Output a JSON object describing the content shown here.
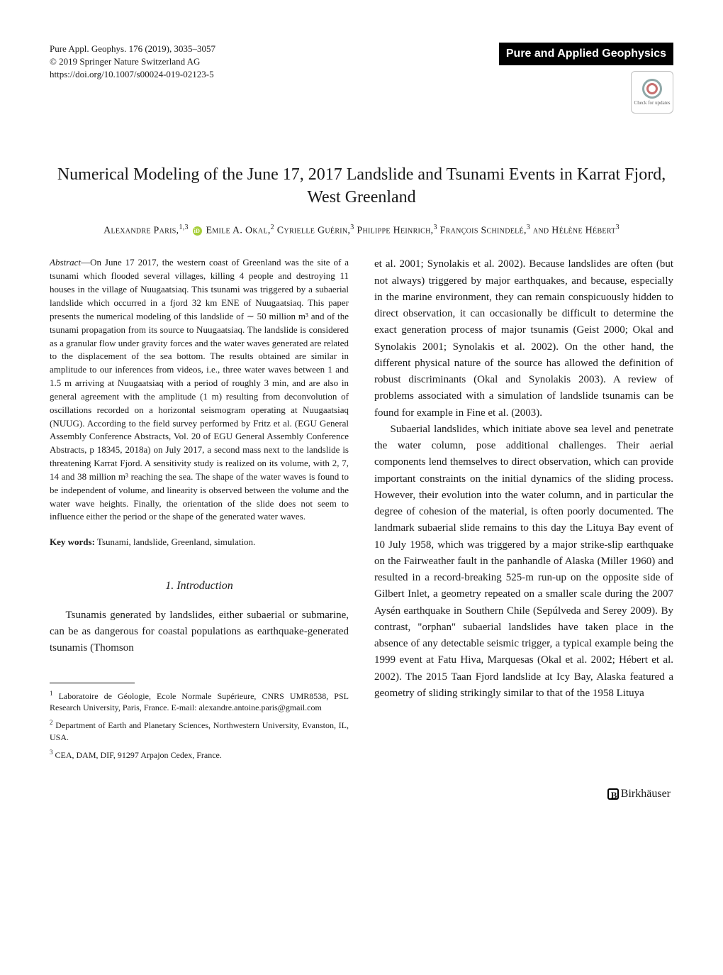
{
  "header": {
    "journal_ref": "Pure Appl. Geophys. 176 (2019), 3035–3057",
    "copyright": "© 2019 Springer Nature Switzerland AG",
    "doi": "https://doi.org/10.1007/s00024-019-02123-5",
    "journal_title": "Pure and Applied Geophysics",
    "crossmark_label": "Check for updates"
  },
  "title": "Numerical Modeling of the June 17, 2017 Landslide and Tsunami Events in Karrat Fjord, West Greenland",
  "authors": {
    "a1": "Alexandre Paris,",
    "a1_aff": "1,3",
    "a2": "Emile A. Okal,",
    "a2_aff": "2",
    "a3": "Cyrielle Guérin,",
    "a3_aff": "3",
    "a4": "Philippe Heinrich,",
    "a4_aff": "3",
    "a5": "François Schindelé,",
    "a5_aff": "3",
    "and": "and",
    "a6": "Hélène Hébert",
    "a6_aff": "3"
  },
  "abstract": {
    "label": "Abstract",
    "text": "—On June 17 2017, the western coast of Greenland was the site of a tsunami which flooded several villages, killing 4 people and destroying 11 houses in the village of Nuugaatsiaq. This tsunami was triggered by a subaerial landslide which occurred in a fjord 32 km ENE of Nuugaatsiaq. This paper presents the numerical modeling of this landslide of ∼ 50 million m³ and of the tsunami propagation from its source to Nuugaatsiaq. The landslide is considered as a granular flow under gravity forces and the water waves generated are related to the displacement of the sea bottom. The results obtained are similar in amplitude to our inferences from videos, i.e., three water waves between 1 and 1.5 m arriving at Nuugaatsiaq with a period of roughly 3 min, and are also in general agreement with the amplitude (1 m) resulting from deconvolution of oscillations recorded on a horizontal seismogram operating at Nuugaatsiaq (NUUG). According to the field survey performed by Fritz et al. (EGU General Assembly Conference Abstracts, Vol. 20 of EGU General Assembly Conference Abstracts, p 18345, 2018a) on July 2017, a second mass next to the landslide is threatening Karrat Fjord. A sensitivity study is realized on its volume, with 2, 7, 14 and 38 million m³ reaching the sea. The shape of the water waves is found to be independent of volume, and linearity is observed between the volume and the water wave heights. Finally, the orientation of the slide does not seem to influence either the period or the shape of the generated water waves."
  },
  "keywords": {
    "label": "Key words:",
    "text": " Tsunami, landslide, Greenland, simulation."
  },
  "section1": {
    "heading": "1. Introduction",
    "p1": "Tsunamis generated by landslides, either subaerial or submarine, can be as dangerous for coastal populations as earthquake-generated tsunamis (Thomson"
  },
  "col2": {
    "p1": "et al. 2001; Synolakis et al. 2002). Because landslides are often (but not always) triggered by major earthquakes, and because, especially in the marine environment, they can remain conspicuously hidden to direct observation, it can occasionally be difficult to determine the exact generation process of major tsunamis (Geist 2000; Okal and Synolakis 2001; Synolakis et al. 2002). On the other hand, the different physical nature of the source has allowed the definition of robust discriminants (Okal and Synolakis 2003). A review of problems associated with a simulation of landslide tsunamis can be found for example in Fine et al. (2003).",
    "p2": "Subaerial landslides, which initiate above sea level and penetrate the water column, pose additional challenges. Their aerial components lend themselves to direct observation, which can provide important constraints on the initial dynamics of the sliding process. However, their evolution into the water column, and in particular the degree of cohesion of the material, is often poorly documented. The landmark subaerial slide remains to this day the Lituya Bay event of 10 July 1958, which was triggered by a major strike-slip earthquake on the Fairweather fault in the panhandle of Alaska (Miller 1960) and resulted in a record-breaking 525-m run-up on the opposite side of Gilbert Inlet, a geometry repeated on a smaller scale during the 2007 Aysén earthquake in Southern Chile (Sepúlveda and Serey 2009). By contrast, \"orphan\" subaerial landslides have taken place in the absence of any detectable seismic trigger, a typical example being the 1999 event at Fatu Hiva, Marquesas (Okal et al. 2002; Hébert et al. 2002). The 2015 Taan Fjord landslide at Icy Bay, Alaska featured a geometry of sliding strikingly similar to that of the 1958 Lituya"
  },
  "footnotes": {
    "f1": "Laboratoire de Géologie, Ecole Normale Supérieure, CNRS UMR8538, PSL Research University, Paris, France. E-mail: alexandre.antoine.paris@gmail.com",
    "f2": "Department of Earth and Planetary Sciences, Northwestern University, Evanston, IL, USA.",
    "f3": "CEA, DAM, DIF, 91297 Arpajon Cedex, France."
  },
  "footer": {
    "publisher": "Birkhäuser"
  }
}
